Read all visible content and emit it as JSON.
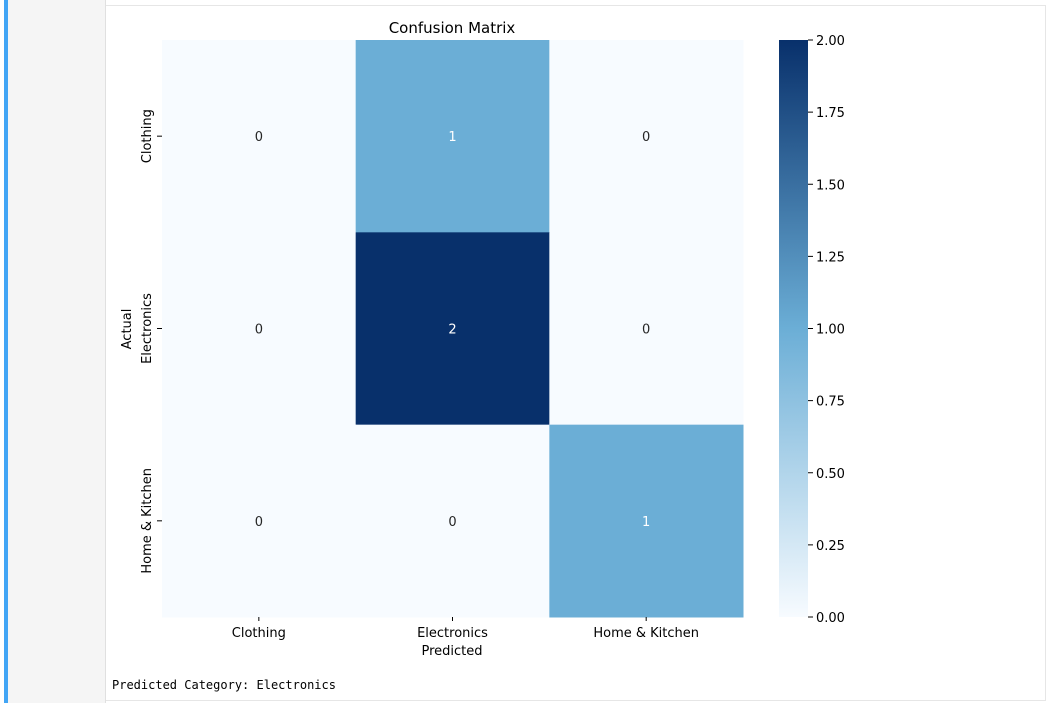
{
  "output": {
    "stdout_text": "Predicted Category: Electronics"
  },
  "chart_data": {
    "type": "heatmap",
    "title": "Confusion Matrix",
    "xlabel": "Predicted",
    "ylabel": "Actual",
    "x_categories": [
      "Clothing",
      "Electronics",
      "Home & Kitchen"
    ],
    "y_categories": [
      "Clothing",
      "Electronics",
      "Home & Kitchen"
    ],
    "values": [
      [
        0,
        1,
        0
      ],
      [
        0,
        2,
        0
      ],
      [
        0,
        0,
        1
      ]
    ],
    "colormap": "Blues",
    "color_low": "#f7fbff",
    "color_mid": "#6baed6",
    "color_high": "#08306b",
    "colorbar_range": [
      0,
      2
    ],
    "colorbar_ticks": [
      "0.00",
      "0.25",
      "0.50",
      "0.75",
      "1.00",
      "1.25",
      "1.50",
      "1.75",
      "2.00"
    ],
    "annotation_text_light": "#ffffff",
    "annotation_text_dark": "#262626"
  }
}
